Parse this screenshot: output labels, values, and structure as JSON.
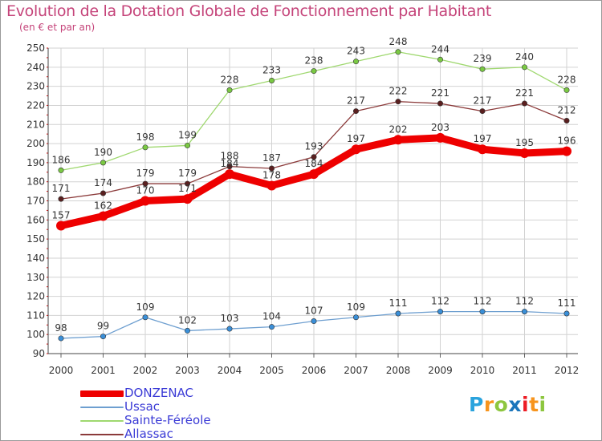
{
  "chart_data": {
    "type": "line",
    "title": "Evolution de la Dotation Globale de Fonctionnement par Habitant",
    "subtitle": "(en € et par an)",
    "categories": [
      "2000",
      "2001",
      "2002",
      "2003",
      "2004",
      "2005",
      "2006",
      "2007",
      "2008",
      "2009",
      "2010",
      "2011",
      "2012"
    ],
    "ylim": [
      90,
      250
    ],
    "yticks": [
      90,
      100,
      110,
      120,
      130,
      140,
      150,
      160,
      170,
      180,
      190,
      200,
      210,
      220,
      230,
      240,
      250
    ],
    "grid": true,
    "legend_position": "bottom-left",
    "series": [
      {
        "name": "Sainte-Féréole",
        "color": "#9fd86f",
        "marker": "#7ac943",
        "width": 1.3,
        "values": [
          186,
          190,
          198,
          199,
          228,
          233,
          238,
          243,
          248,
          244,
          239,
          240,
          228
        ]
      },
      {
        "name": "Allassac",
        "color": "#8b3a3a",
        "marker": "#5a1f1f",
        "width": 1.3,
        "values": [
          171,
          174,
          179,
          179,
          188,
          187,
          193,
          217,
          222,
          221,
          217,
          221,
          212
        ]
      },
      {
        "name": "DONZENAC",
        "color": "#ee0000",
        "marker": "#ee0000",
        "width": 9,
        "values": [
          157,
          162,
          170,
          171,
          184,
          178,
          184,
          197,
          202,
          203,
          197,
          195,
          196
        ]
      },
      {
        "name": "Ussac",
        "color": "#6e9fd0",
        "marker": "#3a8fd8",
        "width": 1.3,
        "values": [
          98,
          99,
          109,
          102,
          103,
          104,
          107,
          109,
          111,
          112,
          112,
          112,
          111
        ]
      }
    ]
  },
  "legend": {
    "items": [
      {
        "label": "DONZENAC",
        "color": "#ee0000"
      },
      {
        "label": "Ussac",
        "color": "#6e9fd0"
      },
      {
        "label": "Sainte-Féréole",
        "color": "#9fd86f"
      },
      {
        "label": "Allassac",
        "color": "#8b3a3a"
      }
    ]
  },
  "logo": {
    "letters": [
      "P",
      "r",
      "o",
      "x",
      "i",
      "t",
      "i"
    ],
    "colors": [
      "#2aa3dd",
      "#f7941d",
      "#8dc63f",
      "#1b75bb",
      "#ed1c24",
      "#f7941d",
      "#8dc63f"
    ]
  }
}
